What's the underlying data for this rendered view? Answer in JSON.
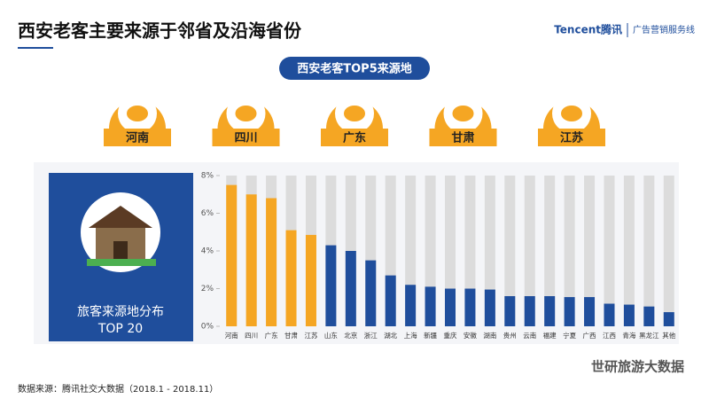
{
  "header": {
    "title": "西安老客主要来源于邻省及沿海省份",
    "logo": "Tencent腾讯",
    "division": "广告营销服务线"
  },
  "top5": {
    "title": "西安老客TOP5来源地",
    "labels": [
      "河南",
      "四川",
      "广东",
      "甘肃",
      "江苏"
    ]
  },
  "panel": {
    "line1": "旅客来源地分布",
    "line2": "TOP 20"
  },
  "chart_data": {
    "type": "bar",
    "categories": [
      "河南",
      "四川",
      "广东",
      "甘肃",
      "江苏",
      "山东",
      "北京",
      "浙江",
      "湖北",
      "上海",
      "新疆",
      "重庆",
      "安徽",
      "湖南",
      "贵州",
      "云南",
      "福建",
      "宁夏",
      "广西",
      "江西",
      "青海",
      "黑龙江",
      "其他"
    ],
    "values": [
      7.5,
      7.0,
      6.8,
      5.1,
      4.85,
      4.3,
      4.0,
      3.5,
      2.7,
      2.2,
      2.1,
      2.0,
      2.0,
      1.95,
      1.6,
      1.6,
      1.6,
      1.55,
      1.55,
      1.2,
      1.15,
      1.05,
      0.75
    ],
    "colors": [
      "#f5a623",
      "#f5a623",
      "#f5a623",
      "#f5a623",
      "#f5a623",
      "#1f4e9c",
      "#1f4e9c",
      "#1f4e9c",
      "#1f4e9c",
      "#1f4e9c",
      "#1f4e9c",
      "#1f4e9c",
      "#1f4e9c",
      "#1f4e9c",
      "#1f4e9c",
      "#1f4e9c",
      "#1f4e9c",
      "#1f4e9c",
      "#1f4e9c",
      "#1f4e9c",
      "#1f4e9c",
      "#1f4e9c",
      "#1f4e9c"
    ],
    "ylim": [
      0,
      8
    ],
    "yticks": [
      {
        "value": 0,
        "label": "0%"
      },
      {
        "value": 2,
        "label": "2%"
      },
      {
        "value": 4,
        "label": "4%"
      },
      {
        "value": 6,
        "label": "6%"
      },
      {
        "value": 8,
        "label": "8%"
      }
    ]
  },
  "footer": {
    "source": "数据来源：腾讯社交大数据（2018.1 - 2018.11）",
    "watermark": "世研旅游大数据"
  }
}
